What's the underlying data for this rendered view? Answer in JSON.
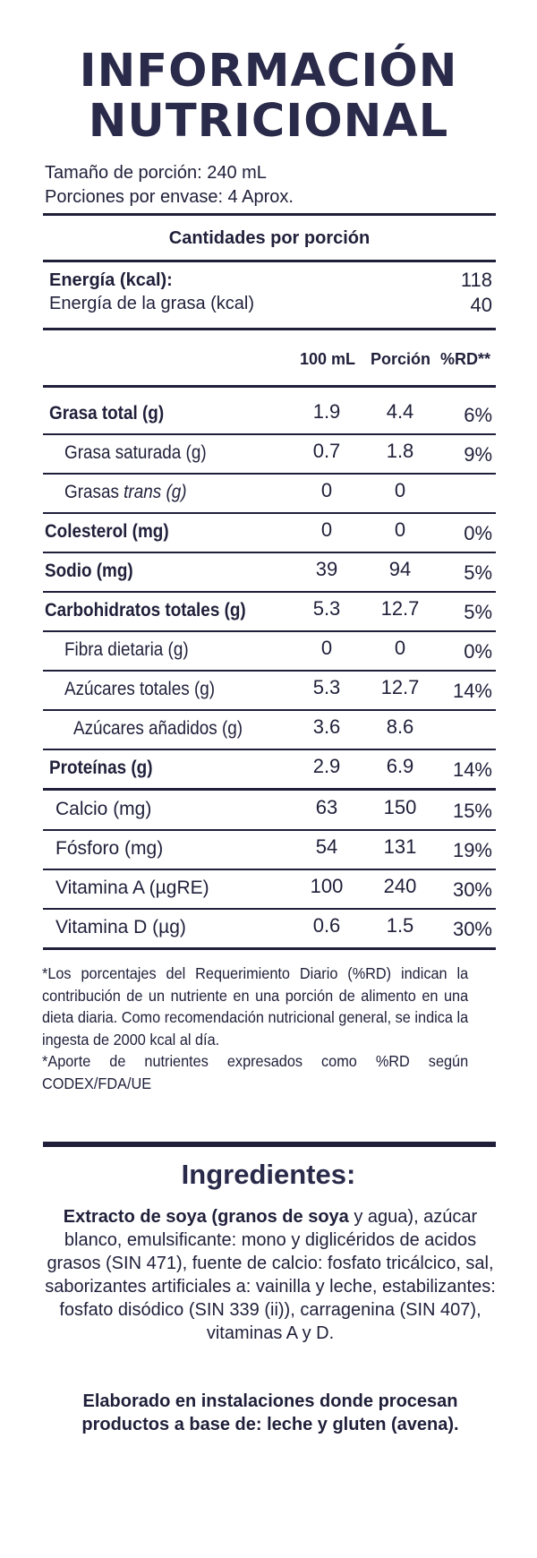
{
  "header": {
    "title_line1": "INFORMACIÓN",
    "title_line2": "NUTRICIONAL"
  },
  "serving": {
    "size": "Tamaño de porción: 240 mL",
    "per_container": "Porciones por envase: 4 Aprox."
  },
  "amounts_heading": "Cantidades por porción",
  "energy": [
    {
      "label": "Energía (kcal):",
      "value": "118"
    },
    {
      "label": "Energía de la grasa (kcal)",
      "value": "40"
    }
  ],
  "columns": {
    "per100": "100 mL",
    "portion": "Porción",
    "rd": "%RD**"
  },
  "nutrients": [
    {
      "label": "Grasa total (g)",
      "per100": "1.9",
      "portion": "4.4",
      "rd": "6%"
    },
    {
      "label": "Grasa saturada (g)",
      "per100": "0.7",
      "portion": "1.8",
      "rd": "9%"
    },
    {
      "label_prefix": "Grasas ",
      "label_italic": "trans (g)",
      "per100": "0",
      "portion": "0",
      "rd": ""
    },
    {
      "label": "Colesterol (mg)",
      "per100": "0",
      "portion": "0",
      "rd": "0%"
    },
    {
      "label": "Sodio (mg)",
      "per100": "39",
      "portion": "94",
      "rd": "5%"
    },
    {
      "label": "Carbohidratos totales (g)",
      "per100": "5.3",
      "portion": "12.7",
      "rd": "5%"
    },
    {
      "label": "Fibra dietaria (g)",
      "per100": "0",
      "portion": "0",
      "rd": "0%"
    },
    {
      "label": "Azúcares totales (g)",
      "per100": "5.3",
      "portion": "12.7",
      "rd": "14%"
    },
    {
      "label": "Azúcares añadidos (g)",
      "per100": "3.6",
      "portion": "8.6",
      "rd": ""
    },
    {
      "label": "Proteínas (g)",
      "per100": "2.9",
      "portion": "6.9",
      "rd": "14%"
    },
    {
      "label": "Calcio (mg)",
      "per100": "63",
      "portion": "150",
      "rd": "15%"
    },
    {
      "label": "Fósforo (mg)",
      "per100": "54",
      "portion": "131",
      "rd": "19%"
    },
    {
      "label": "Vitamina A (µgRE)",
      "per100": "100",
      "portion": "240",
      "rd": "30%"
    },
    {
      "label": "Vitamina D (µg)",
      "per100": "0.6",
      "portion": "1.5",
      "rd": "30%"
    }
  ],
  "footnotes": {
    "rd_note": "*Los porcentajes del Requerimiento Diario (%RD) indican la contribución de un nutriente en una porción de alimento en una dieta diaria. Como recomendación nutricional general, se indica la ingesta de 2000 kcal al día.",
    "codex_note": "*Aporte de nutrientes expresados como %RD según CODEX/FDA/UE"
  },
  "ingredients": {
    "title": "Ingredientes:",
    "bold_part": "Extracto de soya (granos de soya",
    "rest": " y agua), azúcar blanco, emulsificante: mono y diglicéridos de acidos grasos (SIN 471), fuente de calcio: fosfato tricálcico, sal, saborizantes artificiales a: vainilla y leche, estabilizantes: fosfato disódico (SIN 339 (ii)), carragenina (SIN 407), vitaminas A y D.",
    "allergen": "Elaborado en instalaciones donde procesan productos a base de: leche y gluten (avena)."
  },
  "colors": {
    "text": "#1f1f3a",
    "title": "#2a2a4a",
    "rule": "#1f1f3a"
  }
}
